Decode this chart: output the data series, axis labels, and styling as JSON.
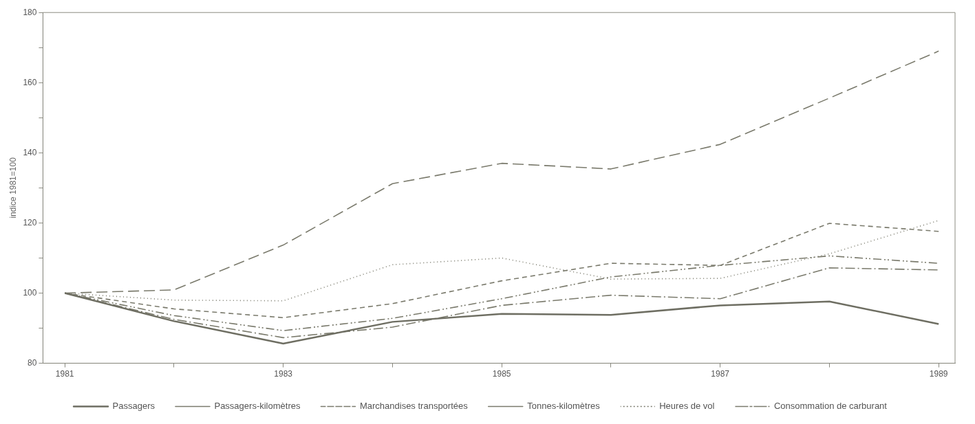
{
  "chart_data": {
    "type": "line",
    "ylabel": "indice 1981=100",
    "x": [
      1981,
      1982,
      1983,
      1984,
      1985,
      1986,
      1987,
      1988,
      1989
    ],
    "xlim": [
      1980.8,
      1989.15
    ],
    "xticks": [
      1981,
      {
        "value": 1982,
        "label": null
      },
      1983,
      {
        "value": 1984,
        "label": null
      },
      1985,
      {
        "value": 1986,
        "label": null
      },
      1987,
      {
        "value": 1988,
        "label": null
      },
      1989
    ],
    "ylim": [
      80,
      180
    ],
    "yticks": [
      80,
      {
        "value": 90,
        "label": null
      },
      100,
      {
        "value": 110,
        "label": null
      },
      120,
      {
        "value": 130,
        "label": null
      },
      140,
      {
        "value": 150,
        "label": null
      },
      160,
      {
        "value": 170,
        "label": null
      },
      180
    ],
    "grid": false,
    "legend": "bottom",
    "marker": "none",
    "series": [
      {
        "name": "Passagers",
        "color": "#6e6e62",
        "line_style": "solid",
        "values": [
          100,
          92,
          85.6,
          91.8,
          94.1,
          93.8,
          96.5,
          97.6,
          91.2
        ]
      },
      {
        "name": "Passagers-kilomètres",
        "color": "#7a7a6c",
        "line_style": "dashdot",
        "values": [
          100,
          92.5,
          87.3,
          90.3,
          96.5,
          99.4,
          98.4,
          107.2,
          106.6
        ]
      },
      {
        "name": "Marchandises transportées",
        "color": "#7a7a6c",
        "line_style": "dashed",
        "values": [
          100,
          95.5,
          93,
          97,
          103.5,
          108.5,
          107.9,
          119.9,
          117.6
        ]
      },
      {
        "name": "Tonnes-kilomètres",
        "color": "#7a7a6c",
        "line_style": "longdash",
        "values": [
          100,
          100.9,
          113.7,
          131.2,
          137,
          135.4,
          142.4,
          155.6,
          169
        ]
      },
      {
        "name": "Heures de vol",
        "color": "#7a7a6c",
        "line_style": "dotted",
        "values": [
          100,
          98,
          97.8,
          108.1,
          110,
          104,
          104.2,
          111.2,
          120.7
        ]
      },
      {
        "name": "Consommation de carburant",
        "color": "#7a7a6c",
        "line_style": "dashdotdot",
        "values": [
          100,
          93.6,
          89.3,
          92.8,
          98.4,
          104.6,
          107.9,
          110.6,
          108.5
        ]
      }
    ]
  }
}
